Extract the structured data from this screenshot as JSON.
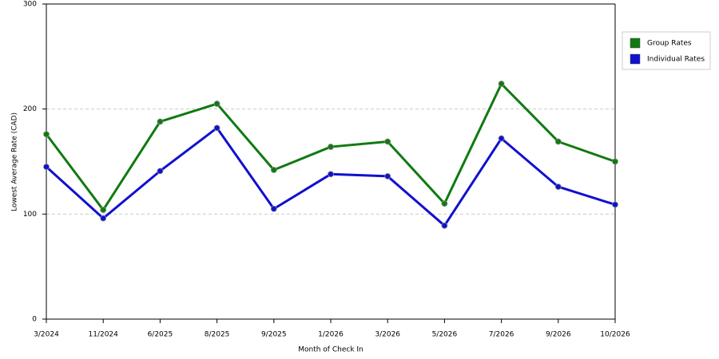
{
  "chart_data": {
    "type": "line",
    "x_label": "Month of Check In",
    "y_label": "Lowest Average Rate (CAD)",
    "categories": [
      "3/2024",
      "11/2024",
      "6/2025",
      "8/2025",
      "9/2025",
      "1/2026",
      "3/2026",
      "5/2026",
      "7/2026",
      "9/2026",
      "10/2026"
    ],
    "series": [
      {
        "name": "Group Rates",
        "color": "#107a10",
        "values": [
          176,
          104,
          188,
          205,
          142,
          164,
          169,
          110,
          224,
          169,
          150
        ]
      },
      {
        "name": "Individual Rates",
        "color": "#1010d0",
        "values": [
          145,
          96,
          141,
          182,
          105,
          138,
          136,
          89,
          172,
          126,
          109
        ]
      }
    ],
    "ylim": [
      0,
      300
    ],
    "yticks": [
      0,
      100,
      200,
      300
    ],
    "grid": true
  }
}
